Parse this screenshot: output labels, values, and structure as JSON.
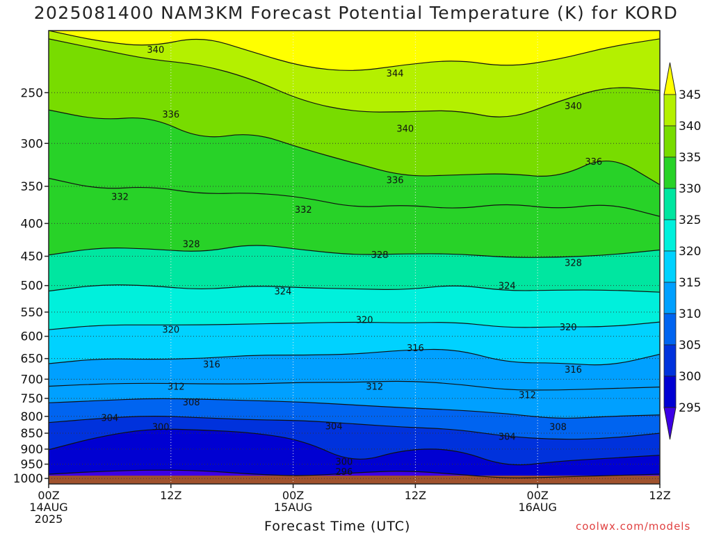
{
  "title": "2025081400 NAM3KM Forecast Potential Temperature (K) for KORD",
  "xaxis_title": "Forecast Time (UTC)",
  "credit": "coolwx.com/models",
  "chart_data": {
    "type": "heatmap",
    "title": "2025081400 NAM3KM Forecast Potential Temperature (K) for KORD",
    "xlabel": "Forecast Time (UTC)",
    "ylabel": "",
    "x_ticks": [
      {
        "hour": 0,
        "lines": [
          "00Z",
          "14AUG",
          "2025"
        ]
      },
      {
        "hour": 12,
        "lines": [
          "12Z"
        ]
      },
      {
        "hour": 24,
        "lines": [
          "00Z",
          "15AUG"
        ]
      },
      {
        "hour": 36,
        "lines": [
          "12Z"
        ]
      },
      {
        "hour": 48,
        "lines": [
          "00Z",
          "16AUG"
        ]
      },
      {
        "hour": 60,
        "lines": [
          "12Z"
        ]
      }
    ],
    "xlim": [
      0,
      60
    ],
    "y_ticks": [
      250,
      300,
      350,
      400,
      450,
      500,
      550,
      600,
      650,
      700,
      750,
      800,
      850,
      900,
      950,
      1000
    ],
    "ylim": [
      1020,
      200
    ],
    "y_scale": "log",
    "colorbar": {
      "labels": [
        345,
        340,
        335,
        330,
        325,
        320,
        315,
        310,
        305,
        300,
        295
      ],
      "bands": [
        {
          "range": [
            345,
            350
          ],
          "color": "#ffff00"
        },
        {
          "range": [
            340,
            345
          ],
          "color": "#b4f000"
        },
        {
          "range": [
            335,
            340
          ],
          "color": "#78dc00"
        },
        {
          "range": [
            330,
            335
          ],
          "color": "#28d228"
        },
        {
          "range": [
            325,
            330
          ],
          "color": "#00e6a0"
        },
        {
          "range": [
            320,
            325
          ],
          "color": "#00f0dc"
        },
        {
          "range": [
            315,
            320
          ],
          "color": "#00d2ff"
        },
        {
          "range": [
            310,
            315
          ],
          "color": "#00a0ff"
        },
        {
          "range": [
            305,
            310
          ],
          "color": "#0064f0"
        },
        {
          "range": [
            300,
            305
          ],
          "color": "#0032dc"
        },
        {
          "range": [
            295,
            300
          ],
          "color": "#0000d2"
        },
        {
          "range": [
            290,
            295
          ],
          "color": "#3c00e6"
        }
      ]
    },
    "ground_color": "#a0522d",
    "contour_interval": 4,
    "contours": [
      {
        "level": 344,
        "p": [
          200,
          208,
          212,
          204,
          216,
          228,
          232,
          226,
          222,
          228,
          222,
          212,
          206
        ]
      },
      {
        "level": 340,
        "p": [
          206,
          214,
          222,
          226,
          238,
          258,
          268,
          268,
          266,
          276,
          258,
          244,
          248
        ]
      },
      {
        "level": 336,
        "p": [
          266,
          276,
          272,
          296,
          288,
          306,
          322,
          338,
          336,
          334,
          340,
          312,
          348
        ]
      },
      {
        "level": 332,
        "p": [
          340,
          354,
          350,
          360,
          358,
          364,
          378,
          374,
          380,
          372,
          380,
          372,
          390
        ]
      },
      {
        "level": 328,
        "p": [
          448,
          436,
          438,
          444,
          430,
          440,
          448,
          446,
          446,
          452,
          452,
          448,
          440
        ]
      },
      {
        "level": 324,
        "p": [
          510,
          498,
          500,
          508,
          500,
          504,
          506,
          508,
          498,
          510,
          508,
          508,
          512
        ]
      },
      {
        "level": 320,
        "p": [
          586,
          576,
          576,
          576,
          574,
          572,
          570,
          572,
          570,
          582,
          580,
          580,
          570
        ]
      },
      {
        "level": 316,
        "p": [
          662,
          650,
          652,
          650,
          642,
          642,
          640,
          630,
          628,
          660,
          660,
          668,
          640
        ]
      },
      {
        "level": 312,
        "p": [
          718,
          712,
          710,
          712,
          712,
          708,
          708,
          704,
          712,
          728,
          728,
          724,
          720
        ]
      },
      {
        "level": 308,
        "p": [
          762,
          756,
          750,
          752,
          756,
          760,
          768,
          776,
          782,
          792,
          808,
          800,
          796
        ]
      },
      {
        "level": 304,
        "p": [
          818,
          806,
          798,
          804,
          810,
          812,
          822,
          832,
          838,
          860,
          870,
          866,
          850
        ]
      },
      {
        "level": 300,
        "p": [
          902,
          860,
          836,
          840,
          848,
          872,
          948,
          900,
          900,
          960,
          940,
          930,
          920
        ]
      },
      {
        "level": 296,
        "p": [
          985,
          975,
          970,
          972,
          985,
          992,
          980,
          972,
          985,
          1000,
          995,
          990,
          985
        ]
      }
    ],
    "contour_labels": [
      {
        "text": "340",
        "hour": 10.5,
        "p": 214
      },
      {
        "text": "344",
        "hour": 34,
        "p": 233
      },
      {
        "text": "336",
        "hour": 12,
        "p": 270
      },
      {
        "text": "340",
        "hour": 35,
        "p": 284
      },
      {
        "text": "340",
        "hour": 51.5,
        "p": 262
      },
      {
        "text": "336",
        "hour": 34,
        "p": 342
      },
      {
        "text": "336",
        "hour": 53.5,
        "p": 320
      },
      {
        "text": "332",
        "hour": 7,
        "p": 363
      },
      {
        "text": "332",
        "hour": 25,
        "p": 380
      },
      {
        "text": "328",
        "hour": 14,
        "p": 430
      },
      {
        "text": "328",
        "hour": 32.5,
        "p": 447
      },
      {
        "text": "328",
        "hour": 51.5,
        "p": 460
      },
      {
        "text": "324",
        "hour": 23,
        "p": 510
      },
      {
        "text": "324",
        "hour": 45,
        "p": 500
      },
      {
        "text": "320",
        "hour": 12,
        "p": 585
      },
      {
        "text": "320",
        "hour": 31,
        "p": 565
      },
      {
        "text": "320",
        "hour": 51,
        "p": 580
      },
      {
        "text": "316",
        "hour": 16,
        "p": 663
      },
      {
        "text": "316",
        "hour": 36,
        "p": 625
      },
      {
        "text": "316",
        "hour": 51.5,
        "p": 675
      },
      {
        "text": "312",
        "hour": 12.5,
        "p": 718
      },
      {
        "text": "312",
        "hour": 32,
        "p": 718
      },
      {
        "text": "312",
        "hour": 47,
        "p": 740
      },
      {
        "text": "308",
        "hour": 14,
        "p": 760
      },
      {
        "text": "308",
        "hour": 50,
        "p": 830
      },
      {
        "text": "304",
        "hour": 6,
        "p": 803
      },
      {
        "text": "304",
        "hour": 28,
        "p": 828
      },
      {
        "text": "304",
        "hour": 45,
        "p": 860
      },
      {
        "text": "300",
        "hour": 11,
        "p": 830
      },
      {
        "text": "300",
        "hour": 29,
        "p": 940
      },
      {
        "text": "296",
        "hour": 29,
        "p": 975
      }
    ]
  }
}
